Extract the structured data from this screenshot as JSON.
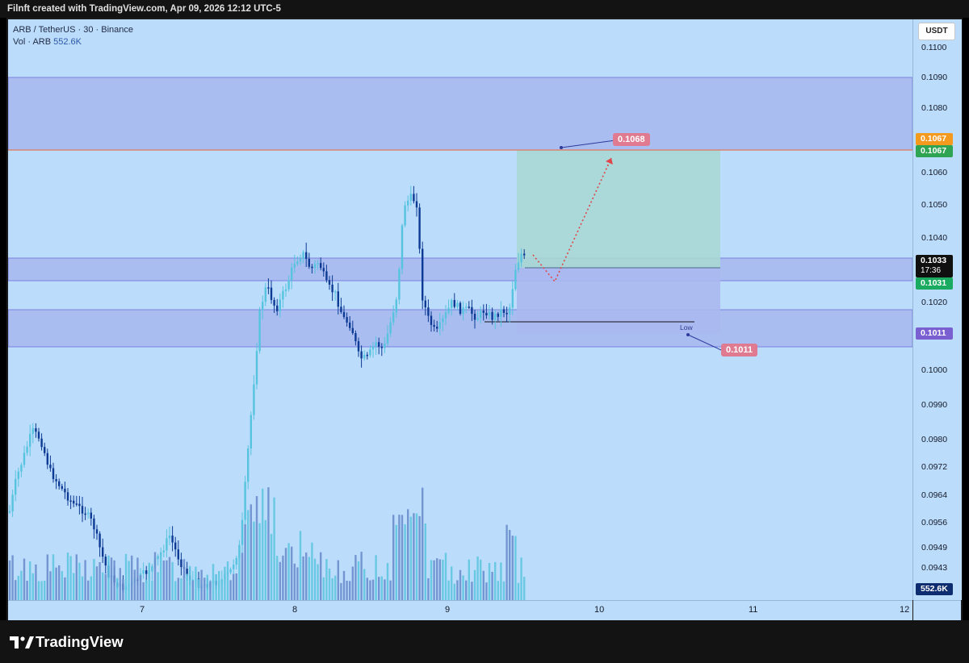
{
  "header": {
    "credit": "Filnft created with TradingView.com, Apr 09, 2026 12:12 UTC-5"
  },
  "legend": {
    "symbol": "ARB / TetherUS · 30 · Binance",
    "vol_label": "Vol · ARB",
    "vol_value": "552.6K"
  },
  "currency_button": "USDT",
  "price_axis": {
    "ticks": [
      "0.1100",
      "0.1090",
      "0.1080",
      "0.1060",
      "0.1050",
      "0.1040",
      "0.1020",
      "0.1000",
      "0.0990",
      "0.0980",
      "0.0972",
      "0.0964",
      "0.0956",
      "0.0949",
      "0.0943"
    ]
  },
  "price_tags": {
    "orange": "0.1067",
    "green_top": "0.1067",
    "current": "0.1033",
    "countdown": "17:36",
    "green_low": "0.1031",
    "purple": "0.1011",
    "volume": "552.6K"
  },
  "time_axis": {
    "labels": [
      "7",
      "8",
      "9",
      "10",
      "11",
      "12"
    ]
  },
  "annotations": {
    "target": "0.1068",
    "stop": "0.1011",
    "low_label": "Low"
  },
  "brand": {
    "name": "TradingView"
  },
  "colors": {
    "background": "#bcdcfb",
    "candle_up": "#56c4df",
    "candle_down": "#0c3a94",
    "target_tag": "#df7a91"
  }
}
